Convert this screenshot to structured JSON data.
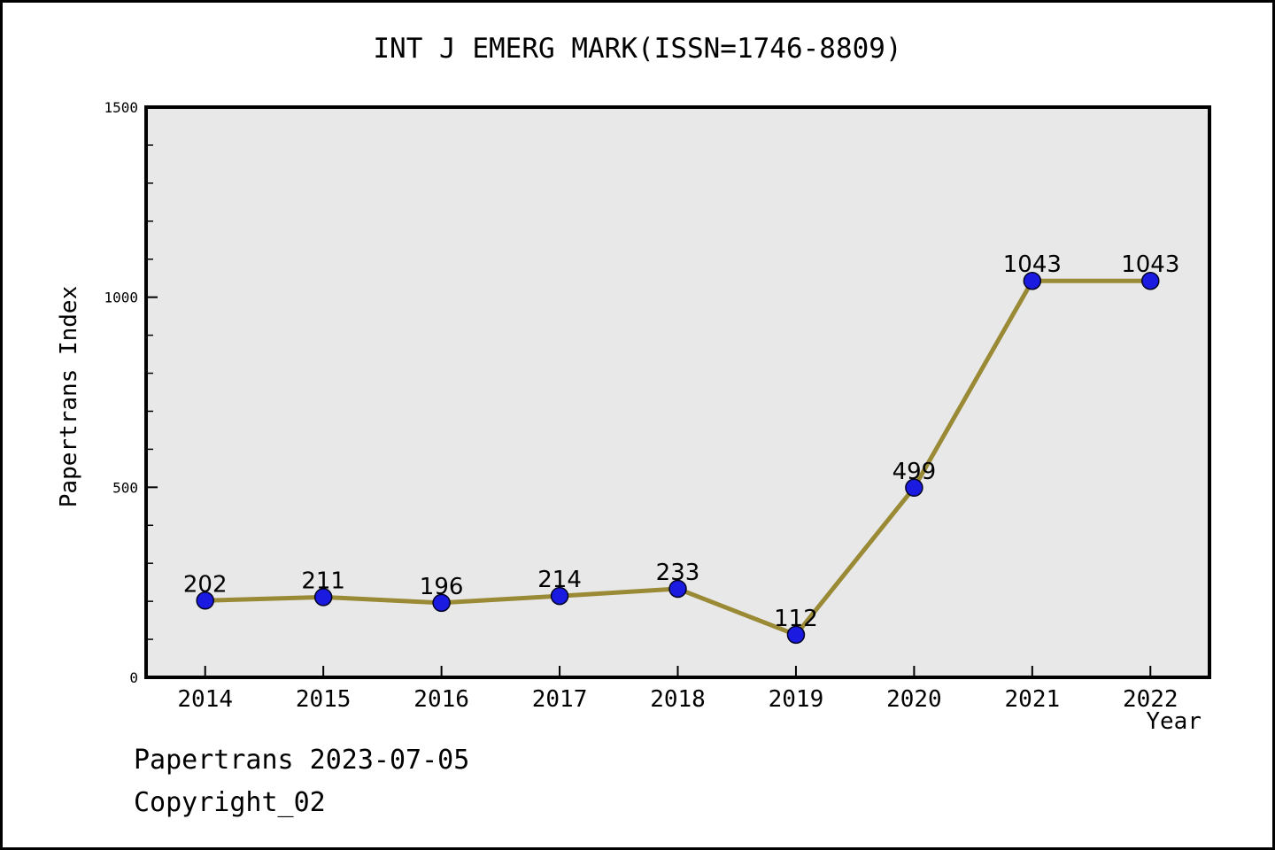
{
  "header": {
    "title": "INT J EMERG MARK(ISSN=1746-8809)"
  },
  "chart_data": {
    "type": "line",
    "title": "INT J EMERG MARK(ISSN=1746-8809)",
    "xlabel": "Year",
    "ylabel": "Papertrans Index",
    "categories": [
      2014,
      2015,
      2016,
      2017,
      2018,
      2019,
      2020,
      2021,
      2022
    ],
    "values": [
      202,
      211,
      196,
      214,
      233,
      112,
      499,
      1043,
      1043
    ],
    "ylim": [
      0,
      1500
    ],
    "xlim": [
      2013.5,
      2022.5
    ],
    "yticks": [
      0,
      500,
      1000,
      1500
    ],
    "ytick_minor_step": 100,
    "grid": false,
    "legend_position": "none",
    "colors": {
      "line": "#9a8a35",
      "marker_fill": "#1a1ae0",
      "marker_edge": "#000020",
      "plot_background": "#e8e8e8",
      "axis": "#000000",
      "text": "#000000"
    }
  },
  "footer": {
    "source_line": "Papertrans 2023-07-05",
    "copyright_line": "Copyright_02"
  }
}
